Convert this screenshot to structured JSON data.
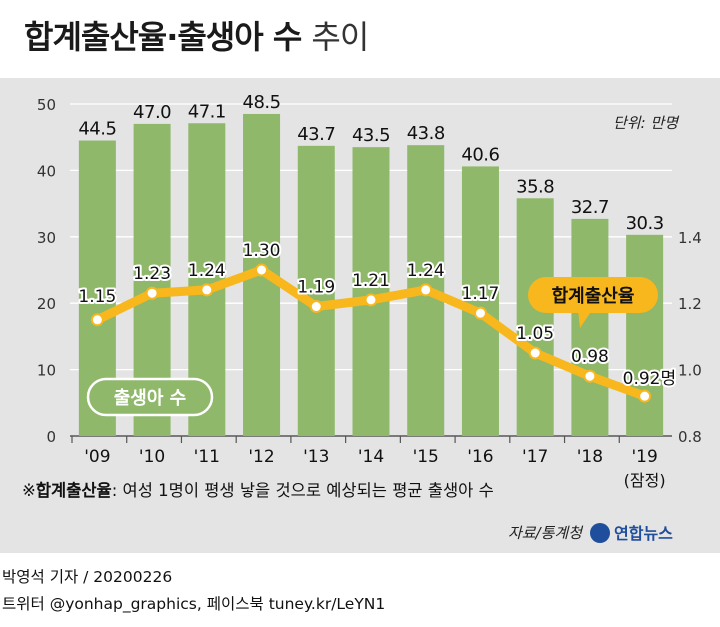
{
  "header": {
    "title_bold": "합계출산율·출생아 수",
    "title_light": "추이"
  },
  "chart_data": {
    "type": "bar+line",
    "categories": [
      "'09",
      "'10",
      "'11",
      "'12",
      "'13",
      "'14",
      "'15",
      "'16",
      "'17",
      "'18",
      "'19"
    ],
    "category_note": "(잠정)",
    "bars": {
      "label": "출생아 수",
      "unit_note": "단위: 만명",
      "values": [
        44.5,
        47.0,
        47.1,
        48.5,
        43.7,
        43.5,
        43.8,
        40.6,
        35.8,
        32.7,
        30.3
      ],
      "labels": [
        "44.5",
        "47.0",
        "47.1",
        "48.5",
        "43.7",
        "43.5",
        "43.8",
        "40.6",
        "35.8",
        "32.7",
        "30.3"
      ],
      "color": "#8fb86a"
    },
    "line": {
      "label": "합계출산율",
      "values": [
        1.15,
        1.23,
        1.24,
        1.3,
        1.19,
        1.21,
        1.24,
        1.17,
        1.05,
        0.98,
        0.92
      ],
      "labels": [
        "1.15",
        "1.23",
        "1.24",
        "1.30",
        "1.19",
        "1.21",
        "1.24",
        "1.17",
        "1.05",
        "0.98",
        "0.92"
      ],
      "last_suffix": "명",
      "color": "#f8b71d"
    },
    "y_left": {
      "ticks": [
        0,
        10,
        20,
        30,
        40,
        50
      ],
      "range": [
        0,
        50
      ]
    },
    "y_right": {
      "ticks": [
        0.8,
        1.0,
        1.2,
        1.4
      ],
      "tick_labels": [
        "0.8",
        "1.0",
        "1.2",
        "1.4"
      ],
      "range": [
        0.8,
        1.8
      ]
    }
  },
  "footnote": {
    "mark": "※",
    "term": "합계출산율",
    "definition": ": 여성 1명이 평생 낳을 것으로 예상되는 평균 출생아 수"
  },
  "source": "자료/통계청",
  "logo_text": "연합뉴스",
  "credits": {
    "line1": "박영석 기자 /  20200226",
    "line2": "트위터 @yonhap_graphics, 페이스북 tuney.kr/LeYN1"
  },
  "colors": {
    "background": "#e4e4e4",
    "bar": "#8fb86a",
    "line": "#f8b71d",
    "logo": "#1f4e9c"
  }
}
